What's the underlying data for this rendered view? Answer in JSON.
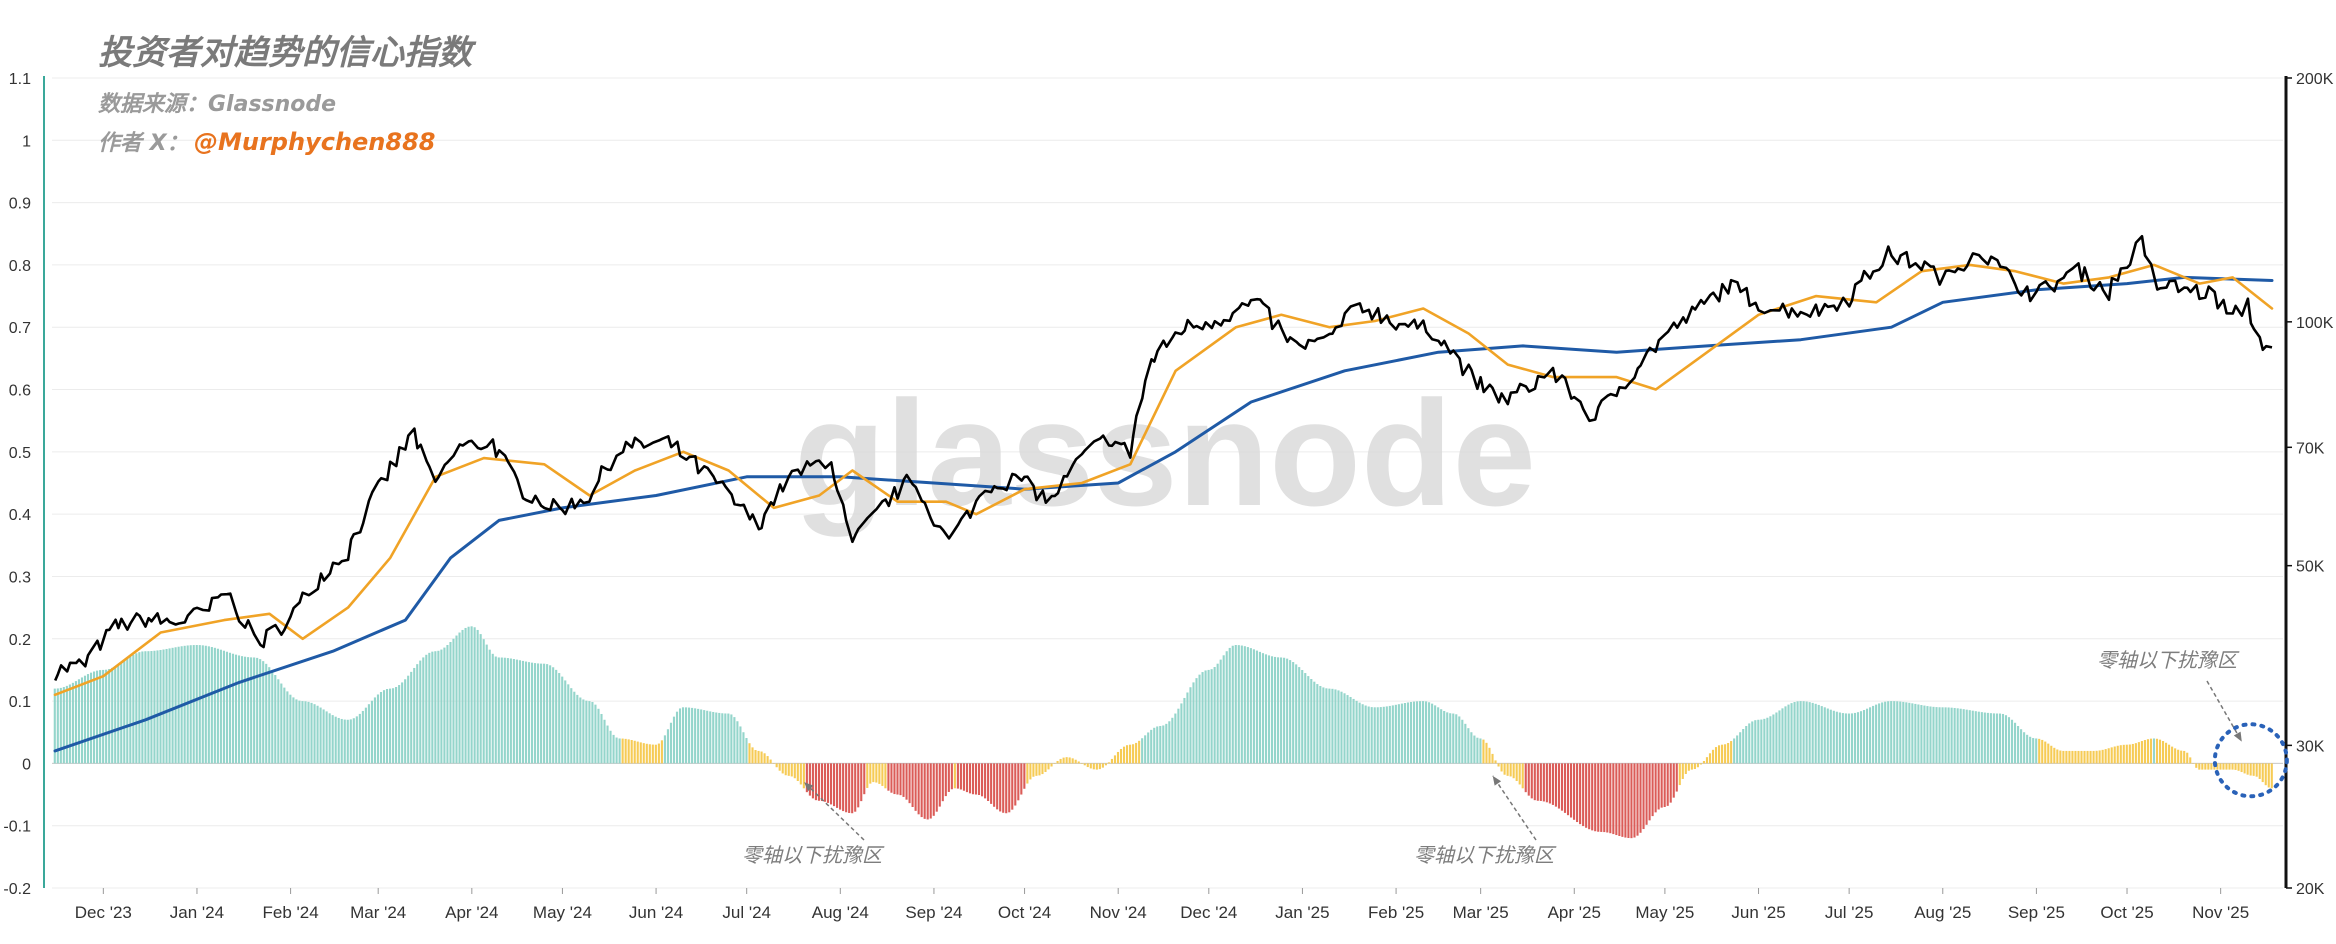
{
  "chart_data": {
    "type": "line",
    "title": "投资者对趋势的信心指数",
    "subtitle": "数据来源：Glassnode",
    "author_label": "作者 X：",
    "author_handle": "@Murphychen888",
    "watermark": "glassnode",
    "x_tick_labels": [
      "Dec '23",
      "Jan '24",
      "Feb '24",
      "Mar '24",
      "Apr '24",
      "May '24",
      "Jun '24",
      "Jul '24",
      "Aug '24",
      "Sep '24",
      "Oct '24",
      "Nov '24",
      "Dec '24",
      "Jan '25",
      "Feb '25",
      "Mar '25",
      "Apr '25",
      "May '25",
      "Jun '25",
      "Jul '25",
      "Aug '25",
      "Sep '25",
      "Oct '25",
      "Nov '25"
    ],
    "x_range": [
      "2023-11-15",
      "2025-11-18"
    ],
    "y_left": {
      "ticks": [
        "1.1",
        "1",
        "0.9",
        "0.8",
        "0.7",
        "0.6",
        "0.5",
        "0.4",
        "0.3",
        "0.2",
        "0.1",
        "0",
        "-0.1",
        "-0.2"
      ],
      "range": [
        -0.2,
        1.1
      ]
    },
    "y_right": {
      "scale": "log",
      "ticks": [
        "200K",
        "100K",
        "70K",
        "50K",
        "30K",
        "20K"
      ],
      "range": [
        20000,
        200000
      ]
    },
    "colors": {
      "price": "#000000",
      "short_ma": "#f0a326",
      "long_ma": "#1f5aa6",
      "bar_positive": "#8ed3c8",
      "bar_near_zero": "#f5c84c",
      "bar_negative": "#d9534f",
      "circle": "#2a62b8",
      "left_axis": "#3aa89a"
    },
    "series": [
      {
        "name": "",
        "axis": "right",
        "color": "#000000",
        "points": [
          [
            "2023-11-15",
            37000
          ],
          [
            "2023-11-25",
            37800
          ],
          [
            "2023-12-05",
            42000
          ],
          [
            "2023-12-15",
            43000
          ],
          [
            "2023-12-25",
            42500
          ],
          [
            "2024-01-05",
            44000
          ],
          [
            "2024-01-11",
            46500
          ],
          [
            "2024-01-22",
            40000
          ],
          [
            "2024-02-01",
            43000
          ],
          [
            "2024-02-10",
            48000
          ],
          [
            "2024-02-20",
            52000
          ],
          [
            "2024-03-01",
            62000
          ],
          [
            "2024-03-13",
            73000
          ],
          [
            "2024-03-20",
            63000
          ],
          [
            "2024-03-28",
            70000
          ],
          [
            "2024-04-08",
            71000
          ],
          [
            "2024-04-18",
            62000
          ],
          [
            "2024-04-30",
            58500
          ],
          [
            "2024-05-10",
            61000
          ],
          [
            "2024-05-21",
            70000
          ],
          [
            "2024-06-05",
            71000
          ],
          [
            "2024-06-20",
            64000
          ],
          [
            "2024-07-05",
            56000
          ],
          [
            "2024-07-15",
            64000
          ],
          [
            "2024-07-29",
            68000
          ],
          [
            "2024-08-05",
            53000
          ],
          [
            "2024-08-15",
            59000
          ],
          [
            "2024-08-25",
            64000
          ],
          [
            "2024-09-06",
            53500
          ],
          [
            "2024-09-20",
            63000
          ],
          [
            "2024-09-30",
            64000
          ],
          [
            "2024-10-10",
            60000
          ],
          [
            "2024-10-20",
            68000
          ],
          [
            "2024-10-29",
            72000
          ],
          [
            "2024-11-05",
            69000
          ],
          [
            "2024-11-12",
            89000
          ],
          [
            "2024-11-22",
            98000
          ],
          [
            "2024-12-05",
            101000
          ],
          [
            "2024-12-17",
            106000
          ],
          [
            "2024-12-30",
            93000
          ],
          [
            "2025-01-10",
            95000
          ],
          [
            "2025-01-20",
            105000
          ],
          [
            "2025-02-01",
            100000
          ],
          [
            "2025-02-15",
            97000
          ],
          [
            "2025-02-28",
            84000
          ],
          [
            "2025-03-10",
            80000
          ],
          [
            "2025-03-25",
            87000
          ],
          [
            "2025-04-08",
            76000
          ],
          [
            "2025-04-21",
            87000
          ],
          [
            "2025-05-01",
            96000
          ],
          [
            "2025-05-22",
            111000
          ],
          [
            "2025-06-05",
            104000
          ],
          [
            "2025-06-20",
            103000
          ],
          [
            "2025-07-01",
            107000
          ],
          [
            "2025-07-14",
            121000
          ],
          [
            "2025-07-25",
            118000
          ],
          [
            "2025-08-02",
            113000
          ],
          [
            "2025-08-13",
            123000
          ],
          [
            "2025-08-25",
            112000
          ],
          [
            "2025-09-01",
            108000
          ],
          [
            "2025-09-15",
            116000
          ],
          [
            "2025-09-25",
            109000
          ],
          [
            "2025-10-06",
            125000
          ],
          [
            "2025-10-11",
            111000
          ],
          [
            "2025-10-20",
            110000
          ],
          [
            "2025-10-30",
            108000
          ],
          [
            "2025-11-05",
            101000
          ],
          [
            "2025-11-10",
            105000
          ],
          [
            "2025-11-14",
            95000
          ],
          [
            "2025-11-18",
            93000
          ]
        ]
      },
      {
        "name": "",
        "axis": "left",
        "color": "#f0a326",
        "points": [
          [
            "2023-11-15",
            0.11
          ],
          [
            "2023-12-01",
            0.14
          ],
          [
            "2023-12-20",
            0.21
          ],
          [
            "2024-01-10",
            0.23
          ],
          [
            "2024-01-25",
            0.24
          ],
          [
            "2024-02-05",
            0.2
          ],
          [
            "2024-02-20",
            0.25
          ],
          [
            "2024-03-05",
            0.33
          ],
          [
            "2024-03-20",
            0.46
          ],
          [
            "2024-04-05",
            0.49
          ],
          [
            "2024-04-25",
            0.48
          ],
          [
            "2024-05-10",
            0.43
          ],
          [
            "2024-05-25",
            0.47
          ],
          [
            "2024-06-10",
            0.5
          ],
          [
            "2024-06-25",
            0.47
          ],
          [
            "2024-07-10",
            0.41
          ],
          [
            "2024-07-25",
            0.43
          ],
          [
            "2024-08-05",
            0.47
          ],
          [
            "2024-08-20",
            0.42
          ],
          [
            "2024-09-05",
            0.42
          ],
          [
            "2024-09-15",
            0.4
          ],
          [
            "2024-10-01",
            0.44
          ],
          [
            "2024-10-20",
            0.45
          ],
          [
            "2024-11-05",
            0.48
          ],
          [
            "2024-11-20",
            0.63
          ],
          [
            "2024-12-10",
            0.7
          ],
          [
            "2024-12-25",
            0.72
          ],
          [
            "2025-01-10",
            0.7
          ],
          [
            "2025-01-25",
            0.71
          ],
          [
            "2025-02-10",
            0.73
          ],
          [
            "2025-02-25",
            0.69
          ],
          [
            "2025-03-10",
            0.64
          ],
          [
            "2025-03-25",
            0.62
          ],
          [
            "2025-04-15",
            0.62
          ],
          [
            "2025-04-28",
            0.6
          ],
          [
            "2025-05-15",
            0.66
          ],
          [
            "2025-06-01",
            0.72
          ],
          [
            "2025-06-20",
            0.75
          ],
          [
            "2025-07-10",
            0.74
          ],
          [
            "2025-07-25",
            0.79
          ],
          [
            "2025-08-10",
            0.8
          ],
          [
            "2025-08-25",
            0.79
          ],
          [
            "2025-09-10",
            0.77
          ],
          [
            "2025-09-25",
            0.78
          ],
          [
            "2025-10-10",
            0.8
          ],
          [
            "2025-10-25",
            0.77
          ],
          [
            "2025-11-05",
            0.78
          ],
          [
            "2025-11-18",
            0.73
          ]
        ]
      },
      {
        "name": "",
        "axis": "left",
        "color": "#1f5aa6",
        "points": [
          [
            "2023-11-15",
            0.02
          ],
          [
            "2023-12-15",
            0.07
          ],
          [
            "2024-01-15",
            0.13
          ],
          [
            "2024-02-15",
            0.18
          ],
          [
            "2024-03-10",
            0.23
          ],
          [
            "2024-03-25",
            0.33
          ],
          [
            "2024-04-10",
            0.39
          ],
          [
            "2024-05-01",
            0.41
          ],
          [
            "2024-06-01",
            0.43
          ],
          [
            "2024-07-01",
            0.46
          ],
          [
            "2024-08-01",
            0.46
          ],
          [
            "2024-09-01",
            0.45
          ],
          [
            "2024-10-01",
            0.44
          ],
          [
            "2024-11-01",
            0.45
          ],
          [
            "2024-11-20",
            0.5
          ],
          [
            "2024-12-15",
            0.58
          ],
          [
            "2025-01-15",
            0.63
          ],
          [
            "2025-02-15",
            0.66
          ],
          [
            "2025-03-15",
            0.67
          ],
          [
            "2025-04-15",
            0.66
          ],
          [
            "2025-05-15",
            0.67
          ],
          [
            "2025-06-15",
            0.68
          ],
          [
            "2025-07-15",
            0.7
          ],
          [
            "2025-08-01",
            0.74
          ],
          [
            "2025-09-01",
            0.76
          ],
          [
            "2025-10-01",
            0.77
          ],
          [
            "2025-10-20",
            0.78
          ],
          [
            "2025-11-18",
            0.775
          ]
        ]
      }
    ],
    "histogram": {
      "name": "",
      "axis": "left",
      "points": [
        [
          "2023-11-15",
          0.12
        ],
        [
          "2023-12-01",
          0.15
        ],
        [
          "2023-12-15",
          0.18
        ],
        [
          "2024-01-01",
          0.19
        ],
        [
          "2024-01-20",
          0.17
        ],
        [
          "2024-02-05",
          0.1
        ],
        [
          "2024-02-20",
          0.07
        ],
        [
          "2024-03-05",
          0.12
        ],
        [
          "2024-03-20",
          0.18
        ],
        [
          "2024-04-01",
          0.22
        ],
        [
          "2024-04-10",
          0.17
        ],
        [
          "2024-04-25",
          0.16
        ],
        [
          "2024-05-10",
          0.1
        ],
        [
          "2024-05-20",
          0.04
        ],
        [
          "2024-06-01",
          0.03
        ],
        [
          "2024-06-10",
          0.09
        ],
        [
          "2024-06-25",
          0.08
        ],
        [
          "2024-07-05",
          0.02
        ],
        [
          "2024-07-15",
          -0.02
        ],
        [
          "2024-07-25",
          -0.06
        ],
        [
          "2024-08-05",
          -0.08
        ],
        [
          "2024-08-12",
          -0.03
        ],
        [
          "2024-08-20",
          -0.05
        ],
        [
          "2024-08-30",
          -0.09
        ],
        [
          "2024-09-08",
          -0.04
        ],
        [
          "2024-09-15",
          -0.05
        ],
        [
          "2024-09-25",
          -0.08
        ],
        [
          "2024-10-05",
          -0.02
        ],
        [
          "2024-10-15",
          0.01
        ],
        [
          "2024-10-25",
          -0.01
        ],
        [
          "2024-11-05",
          0.03
        ],
        [
          "2024-11-15",
          0.06
        ],
        [
          "2024-12-01",
          0.15
        ],
        [
          "2024-12-10",
          0.19
        ],
        [
          "2024-12-25",
          0.17
        ],
        [
          "2025-01-10",
          0.12
        ],
        [
          "2025-01-25",
          0.09
        ],
        [
          "2025-02-10",
          0.1
        ],
        [
          "2025-02-20",
          0.08
        ],
        [
          "2025-03-01",
          0.04
        ],
        [
          "2025-03-10",
          -0.02
        ],
        [
          "2025-03-20",
          -0.06
        ],
        [
          "2025-04-10",
          -0.11
        ],
        [
          "2025-04-20",
          -0.12
        ],
        [
          "2025-05-01",
          -0.07
        ],
        [
          "2025-05-10",
          -0.01
        ],
        [
          "2025-05-20",
          0.03
        ],
        [
          "2025-06-01",
          0.07
        ],
        [
          "2025-06-15",
          0.1
        ],
        [
          "2025-07-01",
          0.08
        ],
        [
          "2025-07-15",
          0.1
        ],
        [
          "2025-08-01",
          0.09
        ],
        [
          "2025-08-20",
          0.08
        ],
        [
          "2025-09-01",
          0.04
        ],
        [
          "2025-09-10",
          0.02
        ],
        [
          "2025-09-20",
          0.02
        ],
        [
          "2025-10-01",
          0.03
        ],
        [
          "2025-10-10",
          0.04
        ],
        [
          "2025-10-20",
          0.02
        ],
        [
          "2025-10-25",
          -0.01
        ],
        [
          "2025-11-05",
          -0.01
        ],
        [
          "2025-11-12",
          -0.02
        ],
        [
          "2025-11-18",
          -0.04
        ]
      ]
    },
    "annotations": [
      {
        "text": "零轴以下扰豫区",
        "target_date": "2024-07-20",
        "target_value": -0.03
      },
      {
        "text": "零轴以下扰豫区",
        "target_date": "2025-03-05",
        "target_value": -0.02
      },
      {
        "text": "零轴以下扰豫区",
        "target_date": "2025-11-08",
        "target_value": 0.035
      }
    ],
    "legend": "none",
    "grid": "horizontal"
  }
}
